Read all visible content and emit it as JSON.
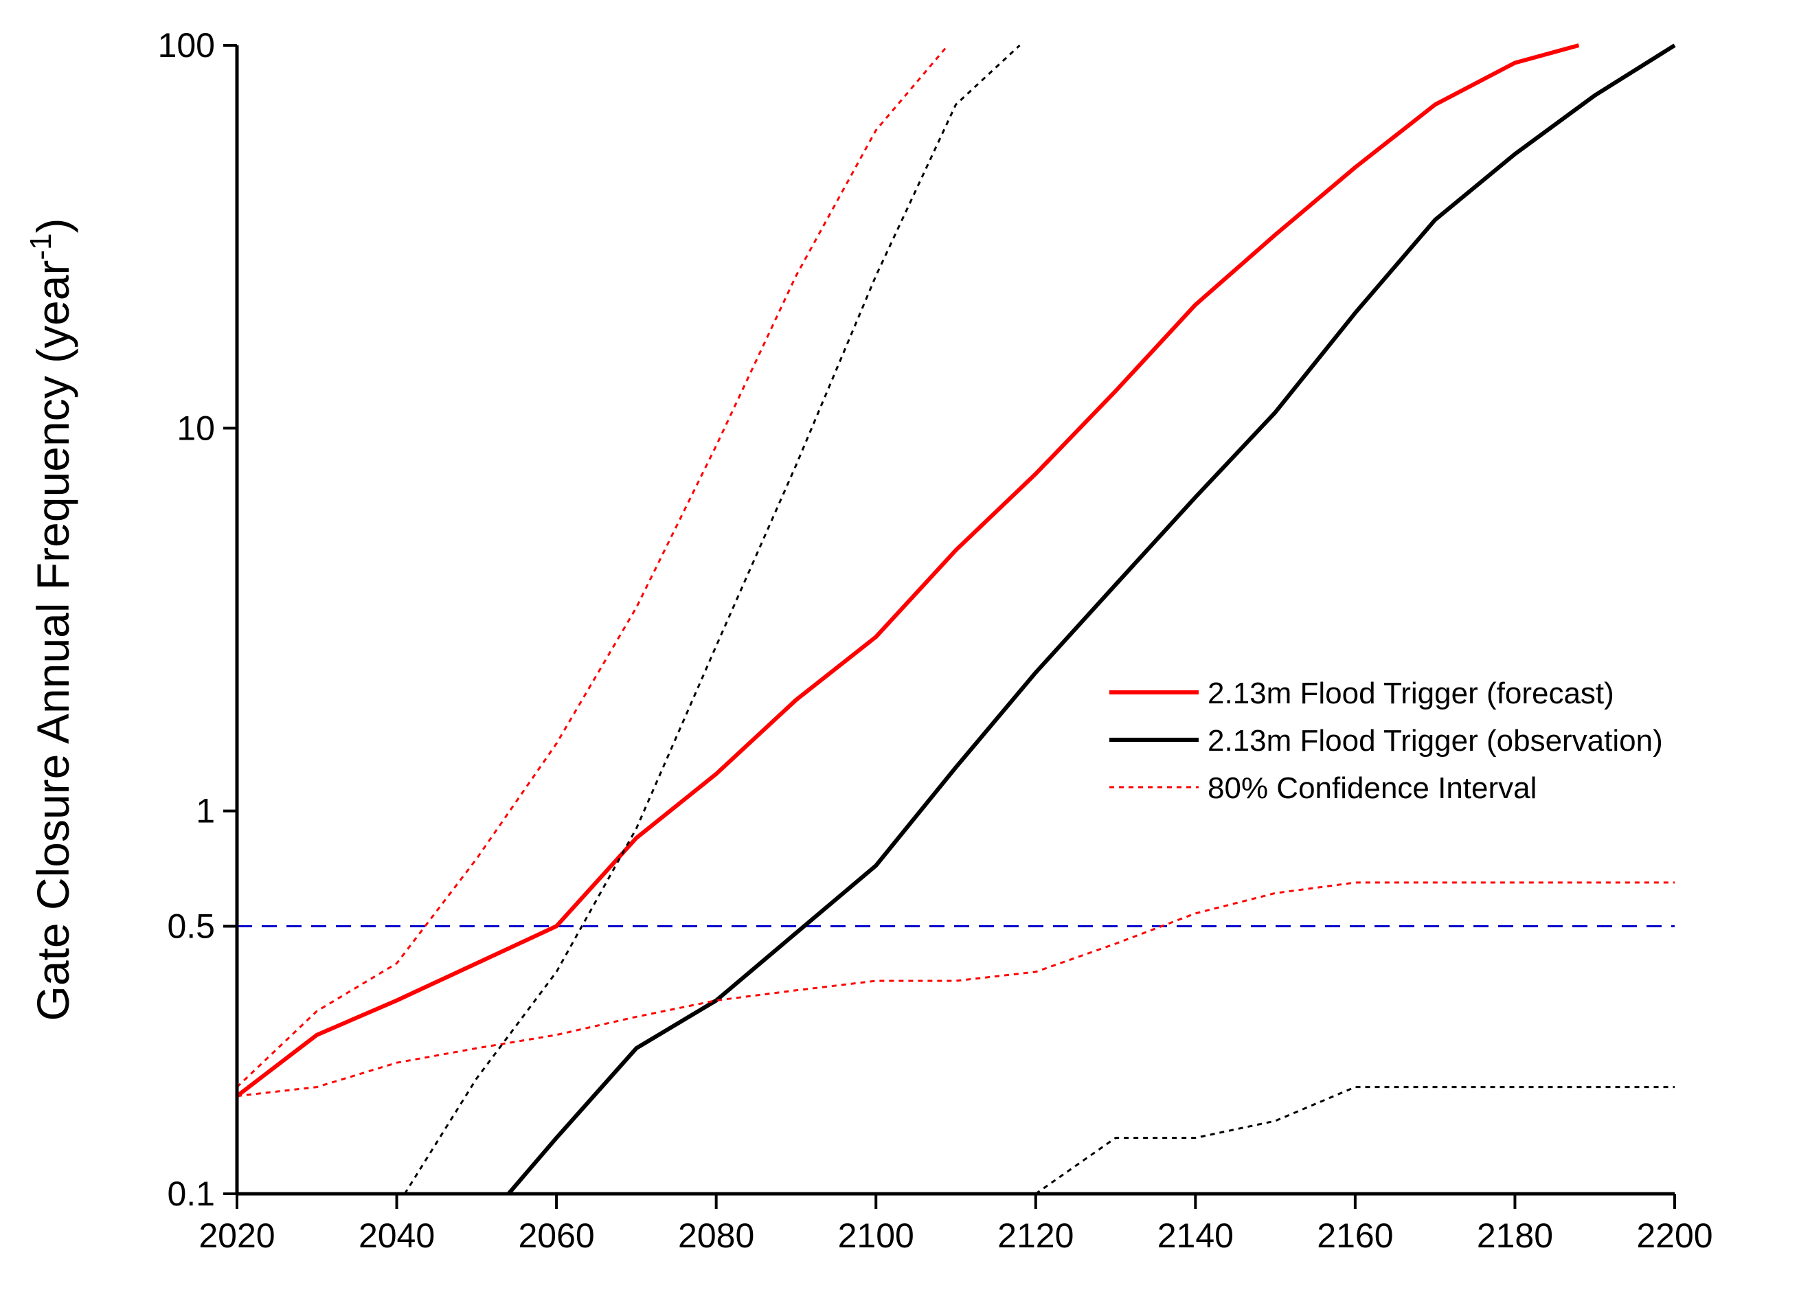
{
  "chart_data": {
    "type": "line",
    "ylabel": "Gate Closure Annual Frequency (year",
    "ylabel_superscript": "-1",
    "ylabel_close": ")",
    "xlabel": "",
    "title": "",
    "xlim": [
      2020,
      2200
    ],
    "ylim": [
      0.1,
      100
    ],
    "y_scale": "log",
    "x_ticks": [
      "2020",
      "2040",
      "2060",
      "2080",
      "2100",
      "2120",
      "2140",
      "2160",
      "2180",
      "2200"
    ],
    "y_ticks": [
      "0.1",
      "0.5",
      "1",
      "10",
      "100"
    ],
    "grid": false,
    "legend_position": "right-middle",
    "legend": [
      "2.13m Flood Trigger (forecast)",
      "2.13m Flood Trigger (observation)",
      "80% Confidence Interval"
    ],
    "colors": {
      "forecast": "#ff0000",
      "observation": "#000000",
      "threshold": "#0000cc"
    },
    "threshold": {
      "y": 0.5
    },
    "series": [
      {
        "name": "2.13m Flood Trigger (forecast)",
        "style": "solid",
        "color": "#ff0000",
        "x": [
          2020,
          2030,
          2040,
          2050,
          2060,
          2070,
          2080,
          2090,
          2100,
          2110,
          2120,
          2130,
          2140,
          2150,
          2160,
          2170,
          2180,
          2188
        ],
        "y": [
          0.18,
          0.26,
          0.32,
          0.4,
          0.5,
          0.85,
          1.25,
          1.95,
          2.85,
          4.8,
          7.6,
          12.5,
          21,
          32,
          48,
          70,
          90,
          100
        ]
      },
      {
        "name": "2.13m Flood Trigger (observation)",
        "style": "solid",
        "color": "#000000",
        "x": [
          2054,
          2060,
          2070,
          2080,
          2090,
          2100,
          2110,
          2120,
          2130,
          2140,
          2150,
          2160,
          2170,
          2180,
          2190,
          2200
        ],
        "y": [
          0.1,
          0.14,
          0.24,
          0.32,
          0.48,
          0.72,
          1.3,
          2.3,
          3.9,
          6.6,
          11,
          20,
          35,
          52,
          74,
          100
        ]
      },
      {
        "name": "forecast upper bound",
        "style": "dotted",
        "color": "#ff0000",
        "x": [
          2020,
          2030,
          2040,
          2050,
          2060,
          2070,
          2080,
          2090,
          2100,
          2109
        ],
        "y": [
          0.19,
          0.3,
          0.4,
          0.75,
          1.5,
          3.4,
          9,
          25,
          60,
          100
        ]
      },
      {
        "name": "forecast lower bound",
        "style": "dotted",
        "color": "#ff0000",
        "x": [
          2020,
          2030,
          2040,
          2050,
          2060,
          2070,
          2080,
          2090,
          2100,
          2110,
          2120,
          2130,
          2140,
          2150,
          2160,
          2170,
          2180,
          2190,
          2200
        ],
        "y": [
          0.18,
          0.19,
          0.22,
          0.24,
          0.26,
          0.29,
          0.32,
          0.34,
          0.36,
          0.36,
          0.38,
          0.45,
          0.54,
          0.61,
          0.65,
          0.65,
          0.65,
          0.65,
          0.65
        ]
      },
      {
        "name": "observation upper bound",
        "style": "dotted",
        "color": "#000000",
        "x": [
          2041,
          2050,
          2060,
          2070,
          2080,
          2090,
          2100,
          2110,
          2118
        ],
        "y": [
          0.1,
          0.2,
          0.38,
          0.9,
          2.7,
          8,
          25,
          70,
          100
        ]
      },
      {
        "name": "observation lower bound",
        "style": "dotted",
        "color": "#000000",
        "x": [
          2120,
          2130,
          2140,
          2150,
          2160,
          2170,
          2180,
          2190,
          2200
        ],
        "y": [
          0.1,
          0.14,
          0.14,
          0.155,
          0.19,
          0.19,
          0.19,
          0.19,
          0.19
        ]
      }
    ]
  }
}
